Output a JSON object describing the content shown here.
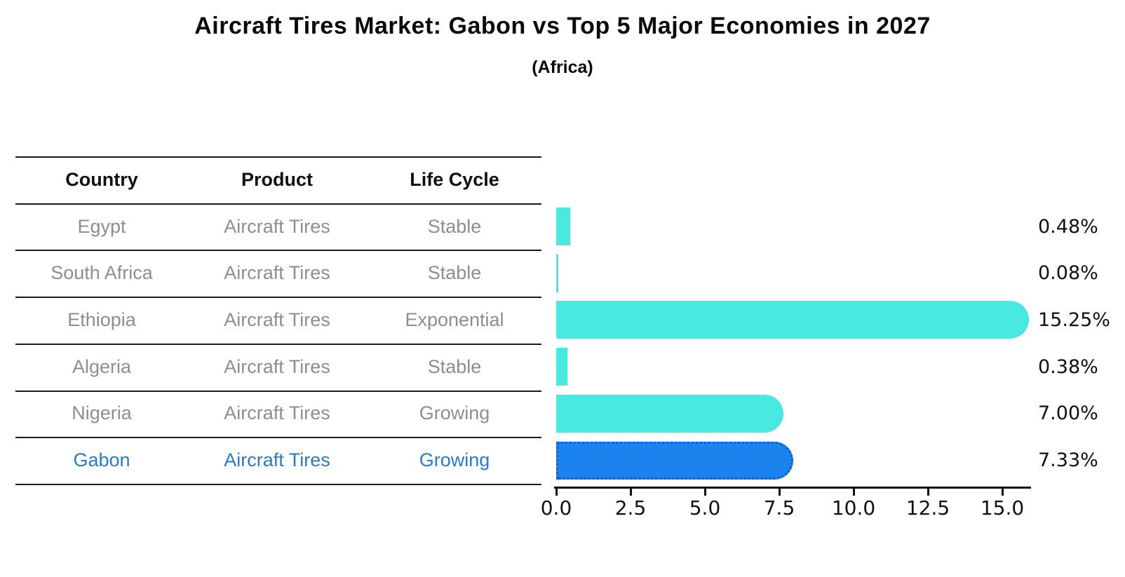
{
  "title": "Aircraft Tires Market: Gabon vs Top 5 Major Economies in 2027",
  "subtitle": "(Africa)",
  "table": {
    "headers": [
      "Country",
      "Product",
      "Life Cycle"
    ],
    "rows": [
      {
        "country": "Egypt",
        "product": "Aircraft Tires",
        "life_cycle": "Stable",
        "highlight": false
      },
      {
        "country": "South Africa",
        "product": "Aircraft Tires",
        "life_cycle": "Stable",
        "highlight": false
      },
      {
        "country": "Ethiopia",
        "product": "Aircraft Tires",
        "life_cycle": "Exponential",
        "highlight": false
      },
      {
        "country": "Algeria",
        "product": "Aircraft Tires",
        "life_cycle": "Stable",
        "highlight": false
      },
      {
        "country": "Nigeria",
        "product": "Aircraft Tires",
        "life_cycle": "Growing",
        "highlight": false
      },
      {
        "country": "Gabon",
        "product": "Aircraft Tires",
        "life_cycle": "Growing",
        "highlight": true
      }
    ]
  },
  "chart_data": {
    "type": "bar",
    "orientation": "horizontal",
    "title": "Aircraft Tires Market: Gabon vs Top 5 Major Economies in 2027",
    "subtitle": "(Africa)",
    "categories": [
      "Egypt",
      "South Africa",
      "Ethiopia",
      "Algeria",
      "Nigeria",
      "Gabon"
    ],
    "values": [
      0.48,
      0.08,
      15.25,
      0.38,
      7.0,
      7.33
    ],
    "value_labels": [
      "0.48%",
      "0.08%",
      "15.25%",
      "0.38%",
      "7.00%",
      "7.33%"
    ],
    "highlight_index": 5,
    "x_ticks": [
      0.0,
      2.5,
      5.0,
      7.5,
      10.0,
      12.5,
      15.0
    ],
    "x_tick_labels": [
      "0.0",
      "2.5",
      "5.0",
      "7.5",
      "10.0",
      "12.5",
      "15.0"
    ],
    "xlim": [
      0,
      16
    ],
    "grid": false,
    "legend": "none",
    "colors": {
      "bar_default": "#49e9e2",
      "bar_highlight": "#1b83ee",
      "bar_highlight_border": "#0e5ecf",
      "row_text_gray": "#8e8e8e",
      "row_text_highlight": "#2b7ac9",
      "axis": "#111111"
    }
  }
}
